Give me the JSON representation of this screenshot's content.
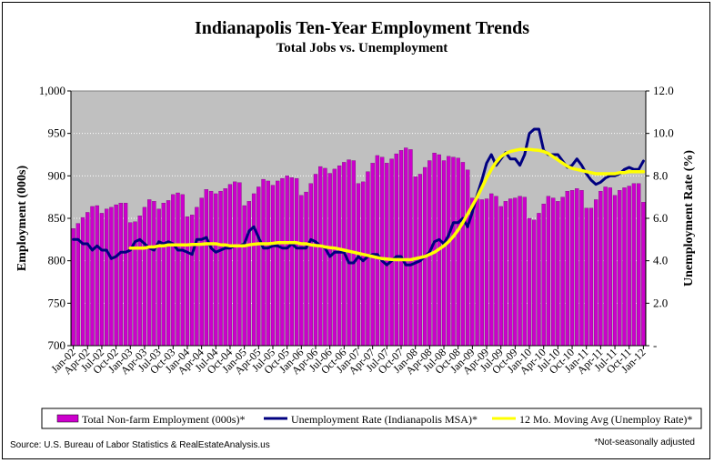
{
  "chart_data": {
    "type": "bar",
    "title": "Indianapolis Ten-Year Employment Trends",
    "subtitle": "Total Jobs vs. Unemployment",
    "ylabel": "Employment (000s)",
    "y2label": "Unemployment Rate (%)",
    "ylim": [
      700,
      1000
    ],
    "y2lim": [
      0,
      12
    ],
    "y_ticks": [
      "700",
      "750",
      "800",
      "850",
      "900",
      "950",
      "1,000"
    ],
    "y2_ticks": [
      "-",
      "2.0",
      "4.0",
      "6.0",
      "8.0",
      "10.0",
      "12.0"
    ],
    "x_tick_labels": [
      "Jan-02",
      "Apr-02",
      "Jul-02",
      "Oct-02",
      "Jan-03",
      "Apr-03",
      "Jul-03",
      "Oct-03",
      "Jan-04",
      "Apr-04",
      "Jul-04",
      "Oct-04",
      "Jan-05",
      "Apr-05",
      "Jul-05",
      "Oct-05",
      "Jan-06",
      "Apr-06",
      "Jul-06",
      "Oct-06",
      "Jan-07",
      "Apr-07",
      "Jul-07",
      "Oct-07",
      "Jan-08",
      "Apr-08",
      "Jul-08",
      "Oct-08",
      "Jan-09",
      "Apr-09",
      "Jul-09",
      "Oct-09",
      "Jan-10",
      "Apr-10",
      "Jul-10",
      "Oct-10",
      "Jan-11",
      "Apr-11",
      "Jul-11",
      "Oct-11",
      "Jan-12"
    ],
    "grid": true,
    "legend_position": "bottom",
    "colors": {
      "bars": "#CC00CC",
      "unemployment": "#000080",
      "moving_avg": "#FFFF00",
      "plot_bg": "#C0C0C0"
    },
    "series": [
      {
        "name": "Total Non-farm Employment (000s)*",
        "type": "bar",
        "axis": "left",
        "values": [
          838,
          844,
          851,
          857,
          864,
          865,
          856,
          861,
          863,
          866,
          868,
          868,
          845,
          846,
          853,
          863,
          872,
          870,
          861,
          868,
          871,
          878,
          880,
          878,
          852,
          854,
          863,
          874,
          884,
          882,
          879,
          882,
          885,
          890,
          893,
          892,
          865,
          870,
          879,
          887,
          896,
          894,
          889,
          894,
          897,
          900,
          898,
          897,
          877,
          881,
          891,
          902,
          911,
          909,
          903,
          908,
          912,
          916,
          919,
          918,
          891,
          893,
          905,
          915,
          924,
          922,
          915,
          920,
          926,
          930,
          933,
          931,
          899,
          902,
          910,
          918,
          927,
          925,
          918,
          923,
          922,
          921,
          916,
          907,
          874,
          873,
          872,
          873,
          879,
          876,
          864,
          870,
          873,
          874,
          876,
          875,
          850,
          848,
          856,
          867,
          876,
          874,
          870,
          875,
          882,
          883,
          885,
          883,
          862,
          862,
          872,
          882,
          887,
          886,
          877,
          883,
          886,
          888,
          891,
          891,
          869
        ]
      },
      {
        "name": "Unemployment Rate (Indianapolis MSA)*",
        "type": "line",
        "axis": "right",
        "values": [
          5.0,
          5.0,
          4.8,
          4.8,
          4.5,
          4.7,
          4.5,
          4.5,
          4.1,
          4.2,
          4.4,
          4.4,
          4.5,
          4.9,
          5.0,
          4.8,
          4.6,
          4.5,
          4.9,
          4.8,
          4.9,
          4.8,
          4.5,
          4.5,
          4.4,
          4.3,
          5.0,
          5.0,
          5.1,
          4.6,
          4.4,
          4.5,
          4.6,
          4.6,
          4.7,
          4.7,
          4.8,
          5.4,
          5.6,
          5.1,
          4.6,
          4.6,
          4.7,
          4.7,
          4.6,
          4.6,
          4.8,
          4.6,
          4.6,
          4.6,
          5.0,
          4.9,
          4.7,
          4.6,
          4.2,
          4.4,
          4.4,
          4.4,
          3.9,
          3.9,
          4.2,
          4.0,
          4.2,
          4.3,
          4.3,
          4.0,
          3.8,
          4.0,
          4.2,
          4.2,
          3.8,
          3.8,
          3.9,
          4.0,
          4.2,
          4.4,
          4.9,
          5.0,
          4.8,
          5.2,
          5.8,
          5.8,
          6.0,
          5.6,
          6.3,
          7.1,
          7.8,
          8.6,
          9.0,
          8.5,
          8.8,
          9.1,
          8.8,
          8.8,
          8.5,
          9.0,
          10.0,
          10.2,
          10.2,
          9.2,
          9.0,
          9.0,
          9.0,
          8.7,
          8.4,
          8.5,
          8.8,
          8.5,
          8.1,
          7.8,
          7.6,
          7.7,
          7.9,
          8.0,
          8.0,
          8.1,
          8.3,
          8.4,
          8.3,
          8.3,
          8.7
        ]
      },
      {
        "name": "12 Mo. Moving Avg (Unemploy Rate)*",
        "type": "line",
        "axis": "right",
        "start_index": 12,
        "values": [
          4.6,
          4.6,
          4.6,
          4.6,
          4.65,
          4.65,
          4.7,
          4.7,
          4.75,
          4.75,
          4.75,
          4.75,
          4.75,
          4.77,
          4.77,
          4.78,
          4.8,
          4.8,
          4.8,
          4.75,
          4.75,
          4.7,
          4.7,
          4.7,
          4.7,
          4.75,
          4.78,
          4.8,
          4.8,
          4.8,
          4.82,
          4.85,
          4.85,
          4.85,
          4.85,
          4.85,
          4.8,
          4.8,
          4.75,
          4.72,
          4.7,
          4.65,
          4.62,
          4.6,
          4.55,
          4.5,
          4.45,
          4.4,
          4.35,
          4.3,
          4.25,
          4.2,
          4.15,
          4.1,
          4.08,
          4.06,
          4.05,
          4.05,
          4.05,
          4.05,
          4.1,
          4.15,
          4.2,
          4.3,
          4.4,
          4.55,
          4.7,
          4.9,
          5.15,
          5.45,
          5.8,
          6.2,
          6.6,
          7.0,
          7.45,
          7.9,
          8.3,
          8.65,
          8.9,
          9.05,
          9.15,
          9.2,
          9.25,
          9.25,
          9.25,
          9.22,
          9.2,
          9.15,
          9.05,
          8.9,
          8.75,
          8.6,
          8.45,
          8.35,
          8.3,
          8.25,
          8.2,
          8.15,
          8.1,
          8.1,
          8.1,
          8.1,
          8.1,
          8.15,
          8.15,
          8.2,
          8.2,
          8.2,
          8.2
        ]
      }
    ]
  },
  "legend": {
    "bars_label": "Total Non-farm Employment (000s)*",
    "unemployment_label": "Unemployment Rate (Indianapolis MSA)*",
    "moving_avg_label": "12 Mo. Moving Avg (Unemploy Rate)*"
  },
  "footer": {
    "source": "Source: U.S. Bureau of Labor Statistics & RealEstateAnalysis.us",
    "note": "*Not-seasonally adjusted"
  }
}
